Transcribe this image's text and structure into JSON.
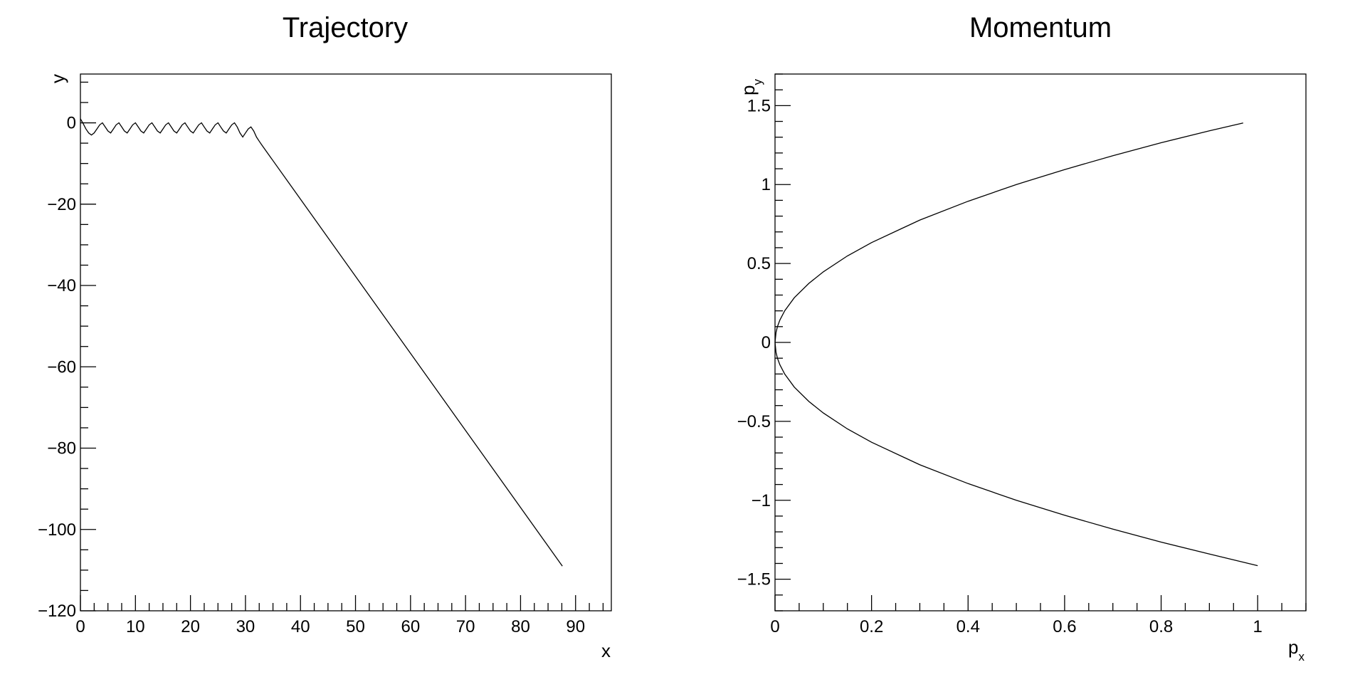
{
  "chart_data": [
    {
      "type": "line",
      "title": "Trajectory",
      "xlabel": "x",
      "ylabel": "y",
      "xlim": [
        0,
        96.5
      ],
      "ylim": [
        -120,
        12
      ],
      "xticks": [
        0,
        10,
        20,
        30,
        40,
        50,
        60,
        70,
        80,
        90
      ],
      "yticks": [
        0,
        -20,
        -40,
        -60,
        -80,
        -100,
        -120
      ],
      "xtick_labels": [
        "0",
        "10",
        "20",
        "30",
        "40",
        "50",
        "60",
        "70",
        "80",
        "90"
      ],
      "ytick_labels": [
        "0",
        "−20",
        "−40",
        "−60",
        "−80",
        "−100",
        "−120"
      ],
      "grid": false,
      "series": [
        {
          "color": "#000000",
          "x": [
            0,
            0.5,
            1,
            1.5,
            2,
            2.5,
            3,
            3.5,
            4,
            4.5,
            5,
            5.5,
            6,
            6.5,
            7,
            7.5,
            8,
            8.5,
            9,
            9.5,
            10,
            10.5,
            11,
            11.5,
            12,
            12.5,
            13,
            13.5,
            14,
            14.5,
            15,
            15.5,
            16,
            16.5,
            17,
            17.5,
            18,
            18.5,
            19,
            19.5,
            20,
            20.5,
            21,
            21.5,
            22,
            22.5,
            23,
            23.5,
            24,
            24.5,
            25,
            25.5,
            26,
            26.5,
            27,
            27.5,
            28,
            28.5,
            29,
            29.5,
            30,
            30.5,
            31,
            31.5,
            32,
            32.5,
            33,
            87.6
          ],
          "y": [
            1,
            -0.2,
            -1.5,
            -2.5,
            -3,
            -2.5,
            -1.5,
            -0.5,
            0,
            -1,
            -2,
            -2.5,
            -1.5,
            -0.5,
            0,
            -1,
            -2,
            -2.5,
            -1.5,
            -0.5,
            0,
            -1,
            -2,
            -2.5,
            -1.5,
            -0.5,
            0,
            -1,
            -2,
            -2.5,
            -1.5,
            -0.5,
            0,
            -1,
            -2,
            -2.5,
            -1.5,
            -0.5,
            0,
            -1,
            -2,
            -2.5,
            -1.5,
            -0.5,
            0,
            -1,
            -2,
            -2.5,
            -1.5,
            -0.5,
            0,
            -1,
            -2,
            -2.5,
            -1.5,
            -0.5,
            0,
            -1,
            -2.5,
            -3.5,
            -2.5,
            -1.5,
            -1,
            -2,
            -3.5,
            -4.5,
            -5.5,
            -109
          ]
        }
      ]
    },
    {
      "type": "line",
      "title": "Momentum",
      "xlabel": "p",
      "xlabel_sub": "x",
      "ylabel": "p",
      "ylabel_sub": "y",
      "xlim": [
        0,
        1.1
      ],
      "ylim": [
        -1.7,
        1.7
      ],
      "xticks": [
        0,
        0.2,
        0.4,
        0.6,
        0.8,
        1
      ],
      "yticks": [
        1.5,
        1,
        0.5,
        0,
        -0.5,
        -1,
        -1.5
      ],
      "xtick_labels": [
        "0",
        "0.2",
        "0.4",
        "0.6",
        "0.8",
        "1"
      ],
      "ytick_labels": [
        "1.5",
        "1",
        "0.5",
        "0",
        "−0.5",
        "−1",
        "−1.5"
      ],
      "grid": false,
      "series": [
        {
          "color": "#000000",
          "x": [
            0.97,
            0.9,
            0.8,
            0.7,
            0.6,
            0.5,
            0.4,
            0.3,
            0.2,
            0.15,
            0.1,
            0.07,
            0.04,
            0.02,
            0.01,
            0.005,
            0.002,
            0,
            0.002,
            0.005,
            0.01,
            0.02,
            0.04,
            0.07,
            0.1,
            0.15,
            0.2,
            0.3,
            0.4,
            0.5,
            0.6,
            0.7,
            0.8,
            0.9,
            1.0
          ],
          "y": [
            1.39,
            1.34,
            1.265,
            1.183,
            1.095,
            1.0,
            0.894,
            0.775,
            0.632,
            0.548,
            0.447,
            0.374,
            0.283,
            0.2,
            0.141,
            0.1,
            0.063,
            0,
            -0.063,
            -0.1,
            -0.141,
            -0.2,
            -0.283,
            -0.374,
            -0.447,
            -0.548,
            -0.632,
            -0.775,
            -0.894,
            -1.0,
            -1.095,
            -1.183,
            -1.265,
            -1.34,
            -1.414
          ]
        }
      ]
    }
  ]
}
